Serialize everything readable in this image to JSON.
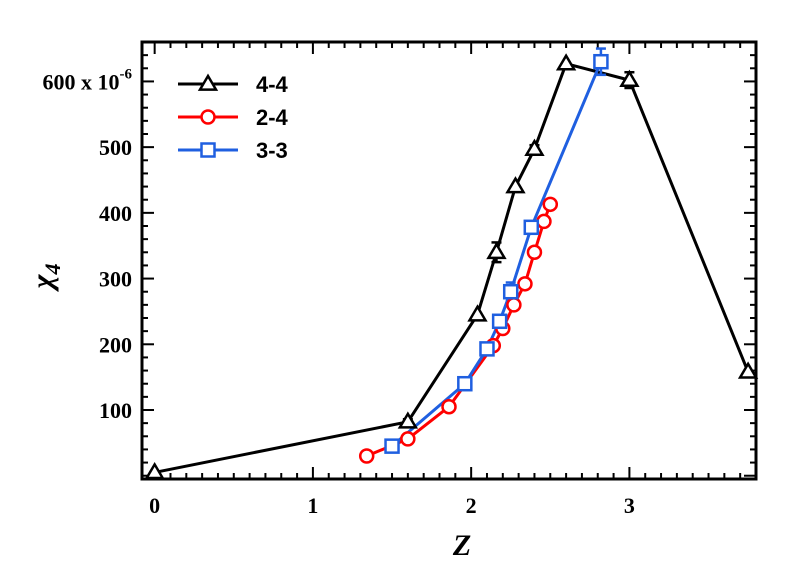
{
  "chart_data": {
    "type": "line",
    "xlabel": "Z",
    "ylabel": "χ",
    "ylabel_sub": "4",
    "xlim": [
      -0.08,
      3.8
    ],
    "ylim": [
      -5,
      660
    ],
    "x_ticks": [
      0,
      1,
      2,
      3
    ],
    "x_tick_labels": [
      "0",
      "1",
      "2",
      "3"
    ],
    "y_ticks": [
      100,
      200,
      300,
      400,
      500,
      600
    ],
    "y_tick_labels": [
      "100",
      "200",
      "300",
      "400",
      "500",
      "600 x 10"
    ],
    "y_scale_exponent": "-6",
    "legend_position": "top-left",
    "grid": false,
    "series": [
      {
        "name": "4-4",
        "color": "#000000",
        "marker": "triangle",
        "points": [
          {
            "x": 0.0,
            "y": 5,
            "err": 0
          },
          {
            "x": 1.6,
            "y": 82,
            "err": 4
          },
          {
            "x": 2.04,
            "y": 245,
            "err": 0
          },
          {
            "x": 2.16,
            "y": 340,
            "err": 15
          },
          {
            "x": 2.28,
            "y": 440,
            "err": 0
          },
          {
            "x": 2.4,
            "y": 497,
            "err": 6
          },
          {
            "x": 2.6,
            "y": 627,
            "err": 0
          },
          {
            "x": 3.0,
            "y": 602,
            "err": 12
          },
          {
            "x": 3.75,
            "y": 158,
            "err": 0
          }
        ]
      },
      {
        "name": "2-4",
        "color": "#ff0000",
        "marker": "circle",
        "points": [
          {
            "x": 1.34,
            "y": 30,
            "err": 0
          },
          {
            "x": 1.6,
            "y": 56,
            "err": 0
          },
          {
            "x": 1.86,
            "y": 105,
            "err": 0
          },
          {
            "x": 2.14,
            "y": 198,
            "err": 0
          },
          {
            "x": 2.2,
            "y": 224,
            "err": 0
          },
          {
            "x": 2.27,
            "y": 260,
            "err": 0
          },
          {
            "x": 2.34,
            "y": 292,
            "err": 0
          },
          {
            "x": 2.4,
            "y": 340,
            "err": 0
          },
          {
            "x": 2.46,
            "y": 387,
            "err": 0
          },
          {
            "x": 2.5,
            "y": 413,
            "err": 0
          }
        ]
      },
      {
        "name": "3-3",
        "color": "#1f5fe0",
        "marker": "square",
        "points": [
          {
            "x": 1.5,
            "y": 45,
            "err": 0
          },
          {
            "x": 1.96,
            "y": 140,
            "err": 0
          },
          {
            "x": 2.1,
            "y": 193,
            "err": 0
          },
          {
            "x": 2.18,
            "y": 235,
            "err": 0
          },
          {
            "x": 2.25,
            "y": 280,
            "err": 14
          },
          {
            "x": 2.38,
            "y": 378,
            "err": 0
          },
          {
            "x": 2.82,
            "y": 630,
            "err": 20
          }
        ]
      }
    ]
  }
}
